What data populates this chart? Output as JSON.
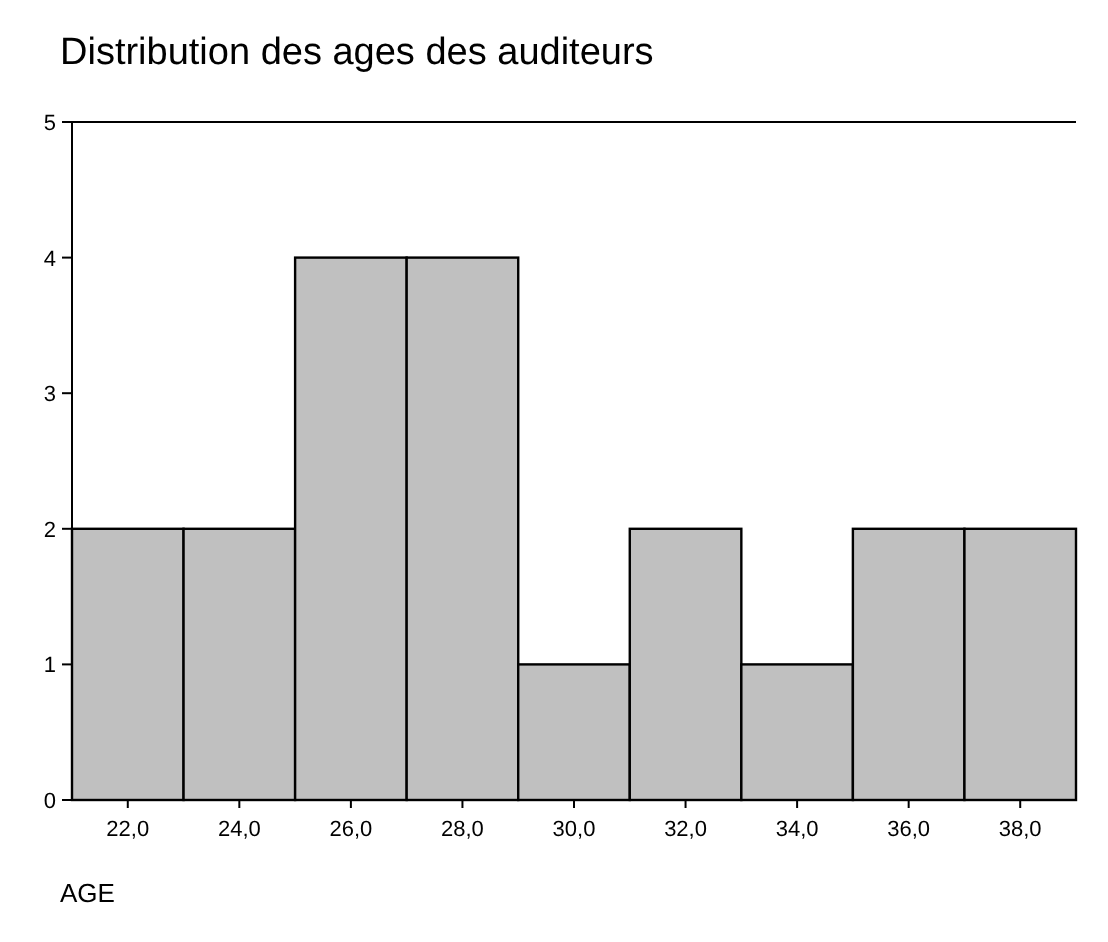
{
  "chart_data": {
    "type": "histogram",
    "title": "Distribution des ages des auditeurs",
    "xlabel": "AGE",
    "bins": [
      21,
      23,
      25,
      27,
      29,
      31,
      33,
      35,
      37,
      39
    ],
    "values": [
      2,
      2,
      4,
      4,
      1,
      2,
      1,
      2,
      2
    ],
    "color": "#c0c0c0",
    "xlim": [
      21,
      39
    ],
    "xticks": [
      {
        "value": 22,
        "label": "22,0"
      },
      {
        "value": 24,
        "label": "24,0"
      },
      {
        "value": 26,
        "label": "26,0"
      },
      {
        "value": 28,
        "label": "28,0"
      },
      {
        "value": 30,
        "label": "30,0"
      },
      {
        "value": 32,
        "label": "32,0"
      },
      {
        "value": 34,
        "label": "34,0"
      },
      {
        "value": 36,
        "label": "36,0"
      },
      {
        "value": 38,
        "label": "38,0"
      }
    ],
    "ylim": [
      0,
      5
    ],
    "yticks": [
      0,
      1,
      2,
      3,
      4,
      5
    ],
    "grid": false
  }
}
